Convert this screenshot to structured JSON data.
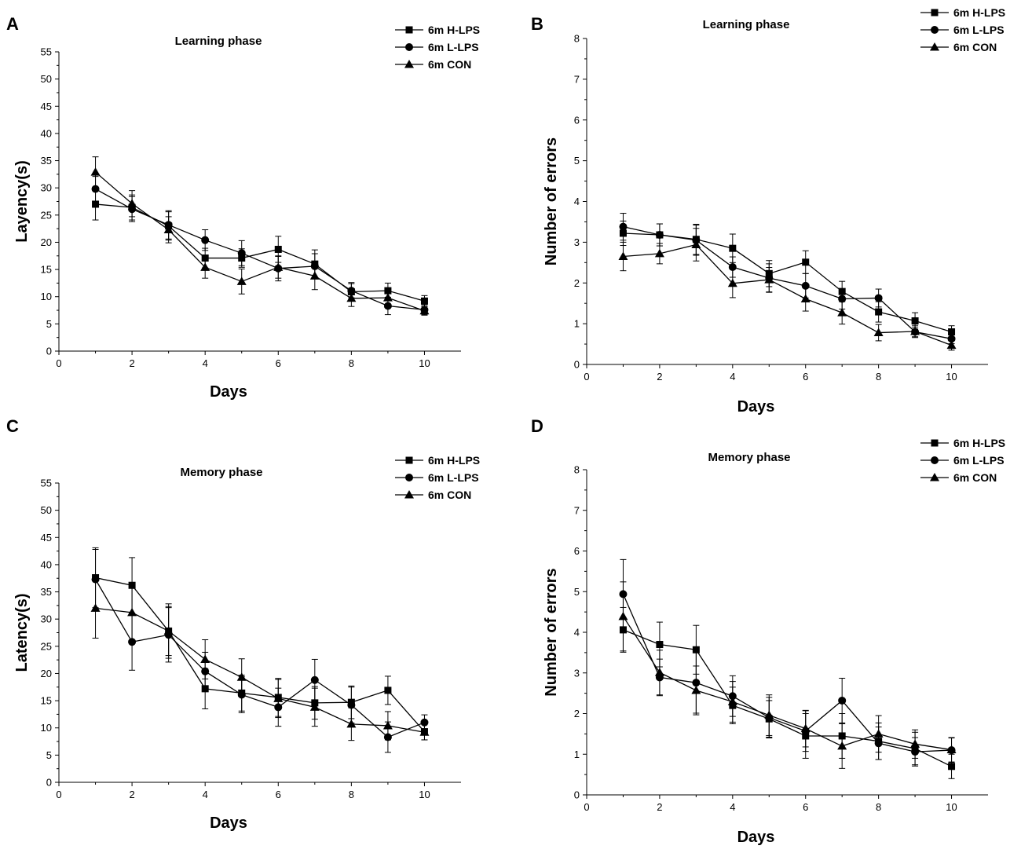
{
  "chart_data": [
    {
      "panel": "A",
      "type": "line",
      "title": "Learning phase",
      "xlabel": "Days",
      "ylabel": "Layency(s)",
      "xlim": [
        0,
        11
      ],
      "ylim": [
        0,
        55
      ],
      "xticks": [
        0,
        2,
        4,
        6,
        8,
        10
      ],
      "yticks": [
        0,
        5,
        10,
        15,
        20,
        25,
        30,
        35,
        40,
        45,
        50,
        55
      ],
      "x": [
        1,
        2,
        3,
        4,
        5,
        6,
        7,
        8,
        9,
        10
      ],
      "legend_position": "top-right",
      "series": [
        {
          "name": "6m H-LPS",
          "marker": "square",
          "values": [
            27,
            26.4,
            23,
            17.1,
            17.1,
            18.7,
            16,
            10.9,
            11.1,
            9.2
          ],
          "errors": [
            2.9,
            2.3,
            2.6,
            1.8,
            1.7,
            2.4,
            2.6,
            1.7,
            1.4,
            1.0
          ]
        },
        {
          "name": "6m L-LPS",
          "marker": "circle",
          "values": [
            29.8,
            26.1,
            23.2,
            20.4,
            18,
            15.2,
            15.6,
            11.1,
            8.3,
            7.6
          ],
          "errors": [
            2.3,
            2.3,
            2.6,
            1.9,
            2.3,
            2.3,
            2.3,
            1.3,
            1.6,
            0.9
          ]
        },
        {
          "name": "6m CON",
          "marker": "triangle",
          "values": [
            32.9,
            27.1,
            22.3,
            15.4,
            12.8,
            15.4,
            13.8,
            9.7,
            9.8,
            7.4
          ],
          "errors": [
            2.8,
            2.4,
            2.4,
            2.0,
            2.3,
            2.0,
            2.5,
            1.5,
            1.7,
            0.8
          ]
        }
      ]
    },
    {
      "panel": "B",
      "type": "line",
      "title": "Learning phase",
      "xlabel": "Days",
      "ylabel": "Number of errors",
      "xlim": [
        0,
        11
      ],
      "ylim": [
        0,
        8
      ],
      "xticks": [
        0,
        2,
        4,
        6,
        8,
        10
      ],
      "yticks": [
        0,
        1,
        2,
        3,
        4,
        5,
        6,
        7,
        8
      ],
      "x": [
        1,
        2,
        3,
        4,
        5,
        6,
        7,
        8,
        9,
        10
      ],
      "legend_position": "top-right",
      "series": [
        {
          "name": "6m H-LPS",
          "marker": "square",
          "values": [
            3.22,
            3.18,
            3.07,
            2.85,
            2.23,
            2.51,
            1.79,
            1.29,
            1.07,
            0.8
          ],
          "errors": [
            0.3,
            0.27,
            0.37,
            0.35,
            0.32,
            0.28,
            0.25,
            0.25,
            0.2,
            0.15
          ]
        },
        {
          "name": "6m L-LPS",
          "marker": "circle",
          "values": [
            3.38,
            3.18,
            3.05,
            2.39,
            2.12,
            1.93,
            1.61,
            1.63,
            0.8,
            0.63
          ],
          "errors": [
            0.33,
            0.27,
            0.37,
            0.25,
            0.35,
            0.3,
            0.25,
            0.22,
            0.12,
            0.12
          ]
        },
        {
          "name": "6m CON",
          "marker": "triangle",
          "values": [
            2.65,
            2.72,
            2.94,
            1.99,
            2.08,
            1.61,
            1.27,
            0.78,
            0.81,
            0.47
          ],
          "errors": [
            0.35,
            0.25,
            0.4,
            0.35,
            0.3,
            0.3,
            0.28,
            0.2,
            0.15,
            0.12
          ]
        }
      ]
    },
    {
      "panel": "C",
      "type": "line",
      "title": "Memory phase",
      "xlabel": "Days",
      "ylabel": "Latency(s)",
      "xlim": [
        0,
        11
      ],
      "ylim": [
        0,
        55
      ],
      "xticks": [
        0,
        2,
        4,
        6,
        8,
        10
      ],
      "yticks": [
        0,
        5,
        10,
        15,
        20,
        25,
        30,
        35,
        40,
        45,
        50,
        55
      ],
      "x": [
        1,
        2,
        3,
        4,
        5,
        6,
        7,
        8,
        9,
        10
      ],
      "legend_position": "top-right",
      "series": [
        {
          "name": "6m H-LPS",
          "marker": "square",
          "values": [
            37.6,
            36.2,
            27.8,
            17.2,
            16.4,
            15.6,
            14.6,
            14.7,
            16.9,
            9.3
          ],
          "errors": [
            5.5,
            5.1,
            5.0,
            3.7,
            3.3,
            3.5,
            3.0,
            3.0,
            2.6,
            1.5
          ]
        },
        {
          "name": "6m L-LPS",
          "marker": "circle",
          "values": [
            37.3,
            25.8,
            27.1,
            20.4,
            16.1,
            13.8,
            18.8,
            14.2,
            8.3,
            11
          ],
          "errors": [
            5.5,
            5.2,
            5.0,
            3.5,
            3.3,
            3.5,
            3.8,
            3.3,
            2.8,
            1.4
          ]
        },
        {
          "name": "6m CON",
          "marker": "triangle",
          "values": [
            32,
            31.2,
            27.8,
            22.6,
            19.3,
            15.4,
            13.8,
            10.7,
            10.4,
            9.2
          ],
          "errors": [
            5.5,
            5.0,
            4.5,
            3.6,
            3.4,
            3.5,
            3.5,
            3.0,
            2.6,
            1.4
          ]
        }
      ]
    },
    {
      "panel": "D",
      "type": "line",
      "title": "Memory phase",
      "xlabel": "Days",
      "ylabel": "Number of errors",
      "xlim": [
        0,
        11
      ],
      "ylim": [
        0,
        8
      ],
      "xticks": [
        0,
        2,
        4,
        6,
        8,
        10
      ],
      "yticks": [
        0,
        1,
        2,
        3,
        4,
        5,
        6,
        7,
        8
      ],
      "x": [
        1,
        2,
        3,
        4,
        5,
        6,
        7,
        8,
        9,
        10
      ],
      "legend_position": "top-right",
      "series": [
        {
          "name": "6m H-LPS",
          "marker": "square",
          "values": [
            4.06,
            3.7,
            3.57,
            2.2,
            1.87,
            1.45,
            1.45,
            1.32,
            1.14,
            0.7
          ],
          "errors": [
            0.55,
            0.55,
            0.6,
            0.45,
            0.45,
            0.55,
            0.55,
            0.45,
            0.4,
            0.3
          ]
        },
        {
          "name": "6m L-LPS",
          "marker": "circle",
          "values": [
            4.94,
            2.89,
            2.76,
            2.43,
            1.9,
            1.57,
            2.32,
            1.27,
            1.06,
            1.1
          ],
          "errors": [
            0.85,
            0.45,
            0.75,
            0.5,
            0.5,
            0.5,
            0.55,
            0.4,
            0.35,
            0.3
          ]
        },
        {
          "name": "6m CON",
          "marker": "triangle",
          "values": [
            4.39,
            3.01,
            2.57,
            2.29,
            1.96,
            1.63,
            1.2,
            1.5,
            1.25,
            1.11
          ],
          "errors": [
            0.85,
            0.55,
            0.6,
            0.5,
            0.5,
            0.45,
            0.55,
            0.45,
            0.35,
            0.3
          ]
        }
      ]
    }
  ]
}
